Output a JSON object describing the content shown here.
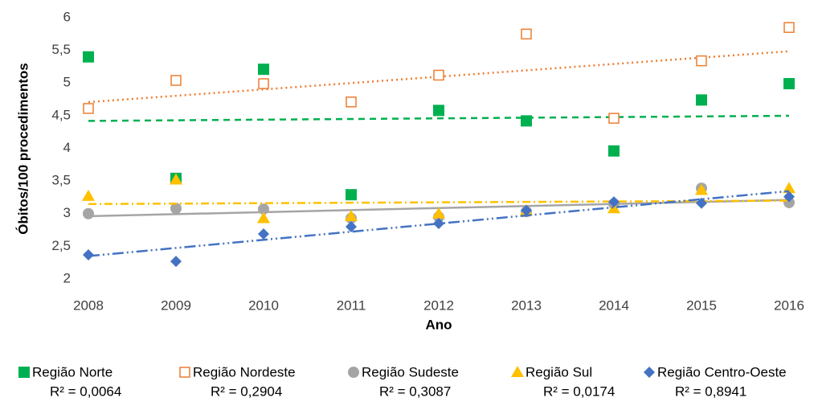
{
  "chart_data": {
    "type": "scatter",
    "x_label": "Ano",
    "y_label": "Óbitos/100 procedimentos",
    "xlim": [
      2008,
      2016
    ],
    "xticks": [
      2008,
      2009,
      2010,
      2011,
      2012,
      2013,
      2014,
      2015,
      2016
    ],
    "ylim": [
      2,
      6
    ],
    "yticks": [
      2,
      {
        "value": 2.5,
        "label": "2,5"
      },
      3,
      {
        "value": 3.5,
        "label": "3,5"
      },
      4,
      {
        "value": 4.5,
        "label": "4,5"
      },
      5,
      {
        "value": 5.5,
        "label": "5,5"
      },
      6
    ],
    "x": [
      2008,
      2009,
      2010,
      2011,
      2012,
      2013,
      2014,
      2015,
      2016
    ],
    "trendline": true,
    "series": [
      {
        "name": "Região Norte",
        "color": "#00b050",
        "marker": "square",
        "trend_dash": "8,6",
        "r2_label": "R² = 0,0064",
        "values": [
          5.4,
          3.54,
          5.21,
          3.29,
          4.58,
          4.42,
          3.96,
          4.74,
          4.99
        ]
      },
      {
        "name": "Região Nordeste",
        "color": "#ed7d31",
        "marker": "square-open",
        "trend_dash": "2,4",
        "r2_label": "R² = 0,2904",
        "values": [
          4.61,
          5.04,
          4.99,
          4.71,
          5.12,
          5.75,
          4.46,
          5.34,
          5.85
        ]
      },
      {
        "name": "Região Sudeste",
        "color": "#a5a5a5",
        "marker": "circle",
        "trend_dash": "",
        "r2_label": "R² = 0,3087",
        "values": [
          3.0,
          3.08,
          3.07,
          2.93,
          2.95,
          3.03,
          3.15,
          3.39,
          3.17
        ]
      },
      {
        "name": "Região Sul",
        "color": "#ffc000",
        "marker": "triangle",
        "trend_dash": "10,4,2,4",
        "r2_label": "R² = 0,0174",
        "values": [
          3.27,
          3.52,
          2.93,
          2.96,
          3.0,
          3.05,
          3.08,
          3.36,
          3.39
        ]
      },
      {
        "name": "Região Centro-Oeste",
        "color": "#4472c4",
        "marker": "diamond",
        "trend_dash": "14,4,2,4,2,4",
        "r2_label": "R² = 0,8941",
        "values": [
          2.37,
          2.27,
          2.69,
          2.8,
          2.85,
          3.05,
          3.18,
          3.16,
          3.26
        ]
      }
    ]
  }
}
